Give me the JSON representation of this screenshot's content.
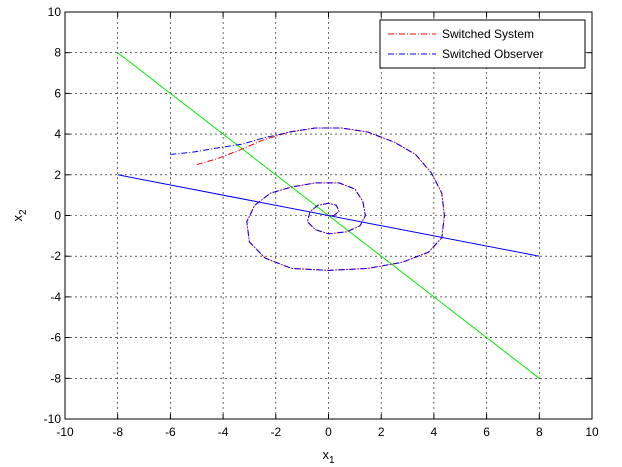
{
  "chart_data": {
    "type": "line",
    "xlabel": "x",
    "xlabel_sub": "1",
    "ylabel": "x",
    "ylabel_sub": "2",
    "xlim": [
      -10,
      10
    ],
    "ylim": [
      -10,
      10
    ],
    "xticks": [
      -10,
      -8,
      -6,
      -4,
      -2,
      0,
      2,
      4,
      6,
      8,
      10
    ],
    "yticks": [
      -10,
      -8,
      -6,
      -4,
      -2,
      0,
      2,
      4,
      6,
      8,
      10
    ],
    "grid": true,
    "legend_position": "top-right",
    "lines": [
      {
        "color": "#00ee00",
        "points": [
          [
            -8,
            8
          ],
          [
            8,
            -8
          ]
        ]
      },
      {
        "color": "#0000ff",
        "points": [
          [
            -8,
            2
          ],
          [
            8,
            -2
          ]
        ]
      }
    ],
    "series": [
      {
        "name": "Switched System",
        "color": "#ff0000",
        "dash": "dashdot",
        "points": [
          [
            -5,
            2.5
          ],
          [
            -4.2,
            2.8
          ],
          [
            -3.4,
            3.2
          ],
          [
            -2.5,
            3.7
          ],
          [
            -1.5,
            4.1
          ],
          [
            -0.5,
            4.3
          ],
          [
            0.5,
            4.3
          ],
          [
            1.5,
            4.1
          ],
          [
            2.5,
            3.6
          ],
          [
            3.3,
            3.0
          ],
          [
            3.9,
            2.1
          ],
          [
            4.3,
            1.1
          ],
          [
            4.4,
            0
          ],
          [
            4.3,
            -1.1
          ],
          [
            3.8,
            -1.8
          ],
          [
            2.8,
            -2.3
          ],
          [
            1.5,
            -2.6
          ],
          [
            0,
            -2.7
          ],
          [
            -1.4,
            -2.6
          ],
          [
            -2.4,
            -2.1
          ],
          [
            -3,
            -1.3
          ],
          [
            -3.1,
            -0.3
          ],
          [
            -2.8,
            0.5
          ],
          [
            -2.2,
            1.1
          ],
          [
            -1.4,
            1.4
          ],
          [
            -0.5,
            1.6
          ],
          [
            0.4,
            1.6
          ],
          [
            1,
            1.3
          ],
          [
            1.3,
            0.7
          ],
          [
            1.4,
            0
          ],
          [
            1.2,
            -0.5
          ],
          [
            0.7,
            -0.8
          ],
          [
            0,
            -0.9
          ],
          [
            -0.5,
            -0.7
          ],
          [
            -0.8,
            -0.3
          ],
          [
            -0.7,
            0.2
          ],
          [
            -0.4,
            0.5
          ],
          [
            0,
            0.6
          ],
          [
            0.3,
            0.5
          ],
          [
            0.4,
            0.2
          ],
          [
            0.2,
            0
          ],
          [
            0,
            0
          ]
        ]
      },
      {
        "name": "Switched Observer",
        "color": "#0000ff",
        "dash": "dashdot",
        "points": [
          [
            -6,
            3.0
          ],
          [
            -5.2,
            3.1
          ],
          [
            -4.3,
            3.3
          ],
          [
            -3.3,
            3.5
          ],
          [
            -2.5,
            3.8
          ],
          [
            -1.5,
            4.1
          ],
          [
            -0.5,
            4.3
          ],
          [
            0.5,
            4.3
          ],
          [
            1.5,
            4.1
          ],
          [
            2.5,
            3.6
          ],
          [
            3.3,
            3.0
          ],
          [
            3.9,
            2.1
          ],
          [
            4.3,
            1.1
          ],
          [
            4.4,
            0
          ],
          [
            4.3,
            -1.1
          ],
          [
            3.8,
            -1.8
          ],
          [
            2.8,
            -2.3
          ],
          [
            1.5,
            -2.6
          ],
          [
            0,
            -2.7
          ],
          [
            -1.4,
            -2.6
          ],
          [
            -2.4,
            -2.1
          ],
          [
            -3,
            -1.3
          ],
          [
            -3.1,
            -0.3
          ],
          [
            -2.8,
            0.5
          ],
          [
            -2.2,
            1.1
          ],
          [
            -1.4,
            1.4
          ],
          [
            -0.5,
            1.6
          ],
          [
            0.4,
            1.6
          ],
          [
            1,
            1.3
          ],
          [
            1.3,
            0.7
          ],
          [
            1.4,
            0
          ],
          [
            1.2,
            -0.5
          ],
          [
            0.7,
            -0.8
          ],
          [
            0,
            -0.9
          ],
          [
            -0.5,
            -0.7
          ],
          [
            -0.8,
            -0.3
          ],
          [
            -0.7,
            0.2
          ],
          [
            -0.4,
            0.5
          ],
          [
            0,
            0.6
          ],
          [
            0.3,
            0.5
          ],
          [
            0.4,
            0.2
          ],
          [
            0.2,
            0
          ],
          [
            0,
            0
          ]
        ]
      }
    ]
  }
}
